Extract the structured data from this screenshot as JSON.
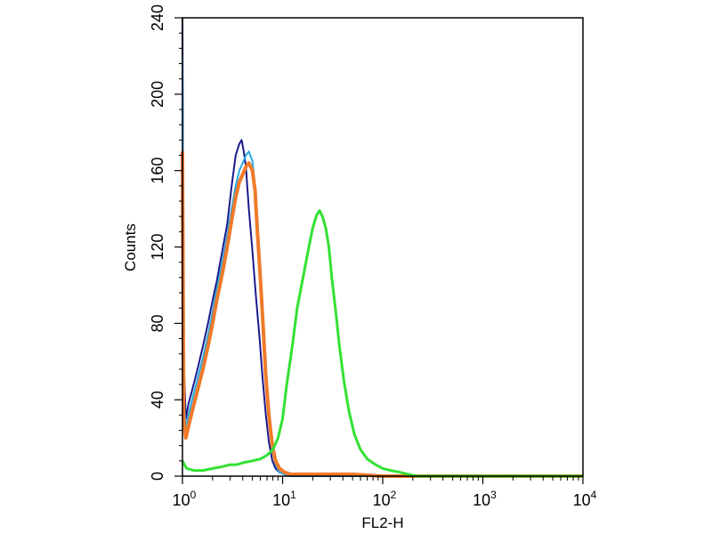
{
  "chart_data": {
    "type": "line",
    "xlabel": "FL2-H",
    "ylabel": "Counts",
    "xscale": "log",
    "xlim": [
      1,
      10000
    ],
    "ylim": [
      0,
      240
    ],
    "grid": false,
    "legend": "none",
    "x_ticks": [
      {
        "base": "10",
        "exp": "0",
        "value": 1
      },
      {
        "base": "10",
        "exp": "1",
        "value": 10
      },
      {
        "base": "10",
        "exp": "2",
        "value": 100
      },
      {
        "base": "10",
        "exp": "3",
        "value": 1000
      },
      {
        "base": "10",
        "exp": "4",
        "value": 10000
      }
    ],
    "y_ticks": [
      "0",
      "40",
      "80",
      "120",
      "160",
      "200",
      "240"
    ],
    "series": [
      {
        "color": "#1a1a8c",
        "x": [
          1.0,
          1.03,
          1.08,
          1.15,
          1.25,
          1.4,
          1.6,
          1.8,
          2.0,
          2.2,
          2.5,
          2.8,
          3.1,
          3.4,
          3.7,
          3.9,
          4.1,
          4.3,
          4.6,
          5.0,
          5.4,
          5.9,
          6.3,
          6.8,
          7.3,
          7.9,
          8.5,
          9.3,
          10.5,
          12,
          15,
          20,
          50,
          200,
          10000
        ],
        "y": [
          240,
          60,
          30,
          38,
          45,
          55,
          68,
          80,
          92,
          102,
          118,
          132,
          152,
          168,
          174,
          176,
          170,
          162,
          140,
          118,
          95,
          72,
          52,
          32,
          18,
          8,
          4,
          2,
          1,
          0,
          0,
          0,
          0,
          0,
          0
        ]
      },
      {
        "color": "#29a8e0",
        "x": [
          1.0,
          1.03,
          1.08,
          1.15,
          1.25,
          1.4,
          1.6,
          1.8,
          2.0,
          2.2,
          2.5,
          2.8,
          3.1,
          3.4,
          3.7,
          4.0,
          4.3,
          4.6,
          5.0,
          5.3,
          5.6,
          6.0,
          6.4,
          6.8,
          7.3,
          7.9,
          8.5,
          9.3,
          10.5,
          12,
          15,
          20,
          50,
          200,
          10000
        ],
        "y": [
          220,
          40,
          25,
          32,
          40,
          50,
          62,
          74,
          86,
          98,
          112,
          126,
          140,
          152,
          160,
          164,
          168,
          170,
          165,
          152,
          128,
          100,
          72,
          48,
          28,
          14,
          6,
          2,
          1,
          0,
          0,
          0,
          0,
          0,
          0
        ]
      },
      {
        "color": "#f07a2a",
        "x": [
          1.0,
          1.03,
          1.08,
          1.15,
          1.25,
          1.4,
          1.6,
          1.8,
          2.0,
          2.2,
          2.5,
          2.8,
          3.1,
          3.4,
          3.7,
          4.0,
          4.3,
          4.6,
          5.0,
          5.3,
          5.6,
          6.0,
          6.4,
          6.8,
          7.3,
          7.9,
          8.5,
          9.3,
          10.5,
          12,
          15,
          20,
          30,
          50,
          100,
          200,
          10000
        ],
        "y": [
          170,
          30,
          20,
          26,
          34,
          44,
          56,
          68,
          80,
          92,
          106,
          120,
          134,
          146,
          154,
          158,
          162,
          164,
          160,
          150,
          128,
          104,
          78,
          52,
          32,
          16,
          8,
          4,
          2,
          1,
          1,
          1,
          1,
          1,
          0,
          0,
          0
        ]
      },
      {
        "color": "#33e133",
        "x": [
          1.0,
          1.1,
          1.3,
          1.6,
          2.0,
          2.5,
          3.0,
          3.5,
          4.0,
          5.0,
          6.0,
          7.0,
          8.0,
          9.0,
          10,
          11,
          12.5,
          14,
          16,
          18,
          20,
          22,
          23.5,
          25,
          27,
          29,
          31,
          34,
          37,
          41,
          46,
          52,
          60,
          70,
          85,
          100,
          120,
          150,
          180,
          220,
          10000
        ],
        "y": [
          8,
          4,
          3,
          3,
          4,
          5,
          6,
          6,
          7,
          8,
          9,
          11,
          14,
          20,
          30,
          48,
          68,
          88,
          104,
          118,
          130,
          137,
          139,
          136,
          130,
          120,
          104,
          86,
          68,
          50,
          34,
          22,
          14,
          9,
          6,
          4,
          3,
          2,
          1,
          0,
          0
        ]
      }
    ]
  }
}
